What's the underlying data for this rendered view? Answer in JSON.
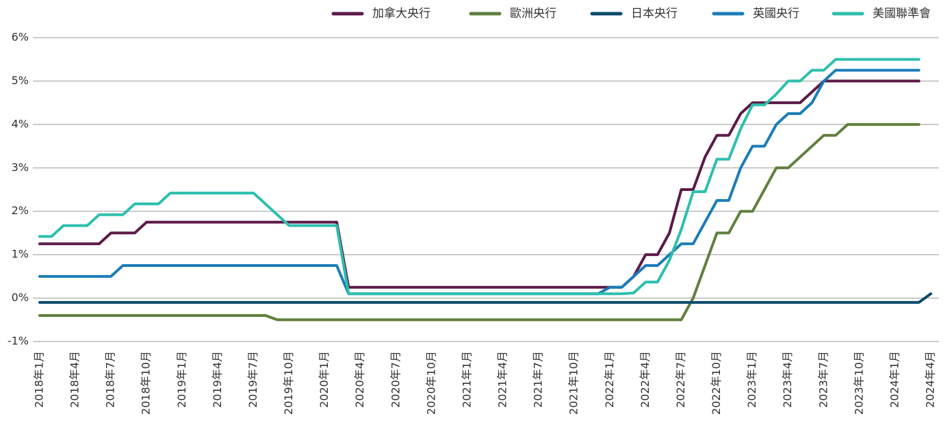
{
  "chart_data": {
    "type": "line",
    "categories": [
      "2018年1月",
      null,
      null,
      "2018年4月",
      null,
      null,
      "2018年7月",
      null,
      null,
      "2018年10月",
      null,
      null,
      "2019年1月",
      null,
      null,
      "2019年4月",
      null,
      null,
      "2019年7月",
      null,
      null,
      "2019年10月",
      null,
      null,
      "2020年1月",
      null,
      null,
      "2020年4月",
      null,
      null,
      "2020年7月",
      null,
      null,
      "2020年10月",
      null,
      null,
      "2021年1月",
      null,
      null,
      "2021年4月",
      null,
      null,
      "2021年7月",
      null,
      null,
      "2021年10月",
      null,
      null,
      "2022年1月",
      null,
      null,
      "2022年4月",
      null,
      null,
      "2022年7月",
      null,
      null,
      "2022年10月",
      null,
      null,
      "2023年1月",
      null,
      null,
      "2023年4月",
      null,
      null,
      "2023年7月",
      null,
      null,
      "2023年10月",
      null,
      null,
      "2024年1月",
      null,
      null,
      "2024年4月"
    ],
    "series": [
      {
        "name": "加拿大央行",
        "color": "#5b1a48",
        "values": [
          1.25,
          1.25,
          1.25,
          1.25,
          1.25,
          1.25,
          1.5,
          1.5,
          1.5,
          1.75,
          1.75,
          1.75,
          1.75,
          1.75,
          1.75,
          1.75,
          1.75,
          1.75,
          1.75,
          1.75,
          1.75,
          1.75,
          1.75,
          1.75,
          1.75,
          1.75,
          0.25,
          0.25,
          0.25,
          0.25,
          0.25,
          0.25,
          0.25,
          0.25,
          0.25,
          0.25,
          0.25,
          0.25,
          0.25,
          0.25,
          0.25,
          0.25,
          0.25,
          0.25,
          0.25,
          0.25,
          0.25,
          0.25,
          0.25,
          0.25,
          0.5,
          1.0,
          1.0,
          1.5,
          2.5,
          2.5,
          3.25,
          3.75,
          3.75,
          4.25,
          4.5,
          4.5,
          4.5,
          4.5,
          4.5,
          4.75,
          5.0,
          5.0,
          5.0,
          5.0,
          5.0,
          5.0,
          5.0,
          5.0,
          5.0,
          null
        ]
      },
      {
        "name": "歐洲央行",
        "color": "#5f803d",
        "values": [
          -0.4,
          -0.4,
          -0.4,
          -0.4,
          -0.4,
          -0.4,
          -0.4,
          -0.4,
          -0.4,
          -0.4,
          -0.4,
          -0.4,
          -0.4,
          -0.4,
          -0.4,
          -0.4,
          -0.4,
          -0.4,
          -0.4,
          -0.4,
          -0.5,
          -0.5,
          -0.5,
          -0.5,
          -0.5,
          -0.5,
          -0.5,
          -0.5,
          -0.5,
          -0.5,
          -0.5,
          -0.5,
          -0.5,
          -0.5,
          -0.5,
          -0.5,
          -0.5,
          -0.5,
          -0.5,
          -0.5,
          -0.5,
          -0.5,
          -0.5,
          -0.5,
          -0.5,
          -0.5,
          -0.5,
          -0.5,
          -0.5,
          -0.5,
          -0.5,
          -0.5,
          -0.5,
          -0.5,
          -0.5,
          0.0,
          0.75,
          1.5,
          1.5,
          2.0,
          2.0,
          2.5,
          3.0,
          3.0,
          3.25,
          3.5,
          3.75,
          3.75,
          4.0,
          4.0,
          4.0,
          4.0,
          4.0,
          4.0,
          4.0,
          null
        ]
      },
      {
        "name": "日本央行",
        "color": "#0d4a6b",
        "values": [
          -0.1,
          -0.1,
          -0.1,
          -0.1,
          -0.1,
          -0.1,
          -0.1,
          -0.1,
          -0.1,
          -0.1,
          -0.1,
          -0.1,
          -0.1,
          -0.1,
          -0.1,
          -0.1,
          -0.1,
          -0.1,
          -0.1,
          -0.1,
          -0.1,
          -0.1,
          -0.1,
          -0.1,
          -0.1,
          -0.1,
          -0.1,
          -0.1,
          -0.1,
          -0.1,
          -0.1,
          -0.1,
          -0.1,
          -0.1,
          -0.1,
          -0.1,
          -0.1,
          -0.1,
          -0.1,
          -0.1,
          -0.1,
          -0.1,
          -0.1,
          -0.1,
          -0.1,
          -0.1,
          -0.1,
          -0.1,
          -0.1,
          -0.1,
          -0.1,
          -0.1,
          -0.1,
          -0.1,
          -0.1,
          -0.1,
          -0.1,
          -0.1,
          -0.1,
          -0.1,
          -0.1,
          -0.1,
          -0.1,
          -0.1,
          -0.1,
          -0.1,
          -0.1,
          -0.1,
          -0.1,
          -0.1,
          -0.1,
          -0.1,
          -0.1,
          -0.1,
          -0.1,
          0.1
        ]
      },
      {
        "name": "英國央行",
        "color": "#1b7db8",
        "values": [
          0.5,
          0.5,
          0.5,
          0.5,
          0.5,
          0.5,
          0.5,
          0.75,
          0.75,
          0.75,
          0.75,
          0.75,
          0.75,
          0.75,
          0.75,
          0.75,
          0.75,
          0.75,
          0.75,
          0.75,
          0.75,
          0.75,
          0.75,
          0.75,
          0.75,
          0.75,
          0.1,
          0.1,
          0.1,
          0.1,
          0.1,
          0.1,
          0.1,
          0.1,
          0.1,
          0.1,
          0.1,
          0.1,
          0.1,
          0.1,
          0.1,
          0.1,
          0.1,
          0.1,
          0.1,
          0.1,
          0.1,
          0.1,
          0.25,
          0.25,
          0.5,
          0.75,
          0.75,
          1.0,
          1.25,
          1.25,
          1.75,
          2.25,
          2.25,
          3.0,
          3.5,
          3.5,
          4.0,
          4.25,
          4.25,
          4.5,
          5.0,
          5.25,
          5.25,
          5.25,
          5.25,
          5.25,
          5.25,
          5.25,
          5.25,
          null
        ]
      },
      {
        "name": "美國聯準會",
        "color": "#2dbfae",
        "values": [
          1.42,
          1.42,
          1.67,
          1.67,
          1.67,
          1.92,
          1.92,
          1.92,
          2.17,
          2.17,
          2.17,
          2.42,
          2.42,
          2.42,
          2.42,
          2.42,
          2.42,
          2.42,
          2.42,
          2.17,
          1.92,
          1.67,
          1.67,
          1.67,
          1.67,
          1.67,
          0.1,
          0.1,
          0.1,
          0.1,
          0.1,
          0.1,
          0.1,
          0.1,
          0.1,
          0.1,
          0.1,
          0.1,
          0.1,
          0.1,
          0.1,
          0.1,
          0.1,
          0.1,
          0.1,
          0.1,
          0.1,
          0.1,
          0.1,
          0.1,
          0.12,
          0.37,
          0.37,
          0.87,
          1.58,
          2.45,
          2.45,
          3.2,
          3.2,
          3.9,
          4.45,
          4.45,
          4.7,
          5.0,
          5.0,
          5.25,
          5.25,
          5.5,
          5.5,
          5.5,
          5.5,
          5.5,
          5.5,
          5.5,
          5.5,
          null
        ]
      }
    ],
    "ylim": [
      -1,
      6
    ],
    "yticks": [
      {
        "value": -1,
        "label": "-1%"
      },
      {
        "value": 0,
        "label": "0%"
      },
      {
        "value": 1,
        "label": "1%"
      },
      {
        "value": 2,
        "label": "2%"
      },
      {
        "value": 3,
        "label": "3%"
      },
      {
        "value": 4,
        "label": "4%"
      },
      {
        "value": 5,
        "label": "5%"
      },
      {
        "value": 6,
        "label": "6%"
      }
    ],
    "grid": true,
    "legend": "top-right"
  }
}
